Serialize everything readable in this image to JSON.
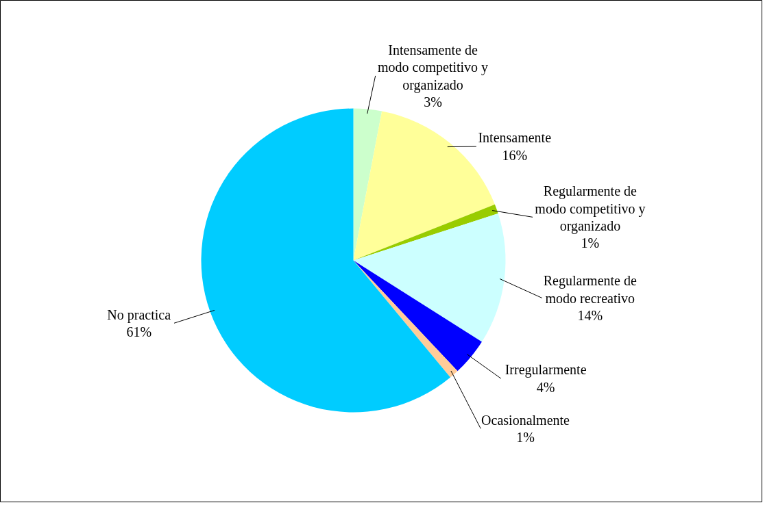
{
  "chart_data": {
    "type": "pie",
    "categories": [
      "Intensamente de modo competitivo y organizado",
      "Intensamente",
      "Regularmente de modo competitivo y organizado",
      "Regularmente de modo recreativo",
      "Irregularmente",
      "Ocasionalmente",
      "No practica"
    ],
    "values": [
      3,
      16,
      1,
      14,
      4,
      1,
      61
    ],
    "colors": [
      "#ccffcc",
      "#ffff99",
      "#99cc00",
      "#ccffff",
      "#0000ff",
      "#ffcc99",
      "#00ccff"
    ],
    "value_labels": [
      "3%",
      "16%",
      "1%",
      "14%",
      "4%",
      "1%",
      "61%"
    ]
  }
}
